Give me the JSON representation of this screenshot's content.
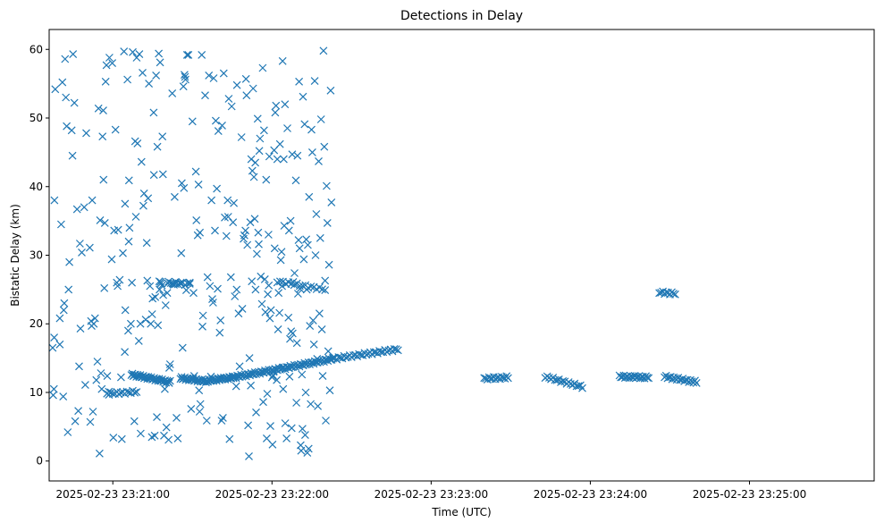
{
  "chart_data": {
    "type": "scatter",
    "title": "Detections in Delay",
    "xlabel": "Time (UTC)",
    "ylabel": "Bistatic Delay (km)",
    "marker": "x",
    "color": "#1f77b4",
    "grid": false,
    "legend": "none",
    "xlim": [
      "2025-02-23 23:20:36",
      "2025-02-23 23:25:47"
    ],
    "ylim": [
      -2.9,
      62.9
    ],
    "xticks": [
      "2025-02-23 23:21:00",
      "2025-02-23 23:22:00",
      "2025-02-23 23:23:00",
      "2025-02-23 23:24:00",
      "2025-02-23 23:25:00"
    ],
    "yticks": [
      "0",
      "10",
      "20",
      "30",
      "40",
      "50",
      "60"
    ],
    "points_x_t0": "2025-02-23 23:20:36",
    "points_x_units": "seconds after points_x_t0",
    "points": [
      [
        1.3,
        16.5
      ],
      [
        1.5,
        9.6
      ],
      [
        1.8,
        10.5
      ],
      [
        1.9,
        18.0
      ],
      [
        2.0,
        38.0
      ],
      [
        2.3,
        54.2
      ],
      [
        4.0,
        17.0
      ],
      [
        4.0,
        20.8
      ],
      [
        4.5,
        34.5
      ],
      [
        5.0,
        55.2
      ],
      [
        5.3,
        9.4
      ],
      [
        5.5,
        22.0
      ],
      [
        5.7,
        23.0
      ],
      [
        6.0,
        58.6
      ],
      [
        6.3,
        53.0
      ],
      [
        6.6,
        48.8
      ],
      [
        7.0,
        4.2
      ],
      [
        7.3,
        25.0
      ],
      [
        7.6,
        29.0
      ],
      [
        8.5,
        48.2
      ],
      [
        8.8,
        44.5
      ],
      [
        9.0,
        59.3
      ],
      [
        9.5,
        52.2
      ],
      [
        9.8,
        5.8
      ],
      [
        10.5,
        36.7
      ],
      [
        11.0,
        7.3
      ],
      [
        11.3,
        13.8
      ],
      [
        11.6,
        31.7
      ],
      [
        11.8,
        19.3
      ],
      [
        12.3,
        30.4
      ],
      [
        13.2,
        37.0
      ],
      [
        13.6,
        11.1
      ],
      [
        14.0,
        47.8
      ],
      [
        15.3,
        31.1
      ],
      [
        15.5,
        5.7
      ],
      [
        15.8,
        20.4
      ],
      [
        16.0,
        19.7
      ],
      [
        16.2,
        38.0
      ],
      [
        16.5,
        7.2
      ],
      [
        16.8,
        20.0
      ],
      [
        17.3,
        20.8
      ],
      [
        17.8,
        11.8
      ],
      [
        18.2,
        14.5
      ],
      [
        18.6,
        51.4
      ],
      [
        19.0,
        1.1
      ],
      [
        19.2,
        35.1
      ],
      [
        19.5,
        12.8
      ],
      [
        19.8,
        10.5
      ],
      [
        20.1,
        47.3
      ],
      [
        20.4,
        51.1
      ],
      [
        20.5,
        41.0
      ],
      [
        20.8,
        25.2
      ],
      [
        21.0,
        34.7
      ],
      [
        21.3,
        55.3
      ],
      [
        21.6,
        57.7
      ],
      [
        21.9,
        12.4
      ],
      [
        22.5,
        10.1
      ],
      [
        22.7,
        58.8
      ],
      [
        23.6,
        29.4
      ],
      [
        23.8,
        58.0
      ],
      [
        24.2,
        3.4
      ],
      [
        24.5,
        33.6
      ],
      [
        25.0,
        48.3
      ],
      [
        25.5,
        26.0
      ],
      [
        25.8,
        25.5
      ],
      [
        26.0,
        33.7
      ],
      [
        26.6,
        26.4
      ],
      [
        27.1,
        12.2
      ],
      [
        27.4,
        3.2
      ],
      [
        27.8,
        30.3
      ],
      [
        28.2,
        59.7
      ],
      [
        28.5,
        15.9
      ],
      [
        28.6,
        37.5
      ],
      [
        28.7,
        22.0
      ],
      [
        29.5,
        55.6
      ],
      [
        29.8,
        19.0
      ],
      [
        30.0,
        32.0
      ],
      [
        30.1,
        40.9
      ],
      [
        30.3,
        34.0
      ],
      [
        30.8,
        20.0
      ],
      [
        31.2,
        26.0
      ],
      [
        31.5,
        59.6
      ],
      [
        32.0,
        12.5
      ],
      [
        32.1,
        5.8
      ],
      [
        32.4,
        46.6
      ],
      [
        32.7,
        35.6
      ],
      [
        33.0,
        58.8
      ],
      [
        33.3,
        46.3
      ],
      [
        33.8,
        17.5
      ],
      [
        34.0,
        59.3
      ],
      [
        34.4,
        20.0
      ],
      [
        34.5,
        4.0
      ],
      [
        34.8,
        43.6
      ],
      [
        35.2,
        56.6
      ],
      [
        35.5,
        37.2
      ],
      [
        35.8,
        39.0
      ],
      [
        36.4,
        20.6
      ],
      [
        36.8,
        31.8
      ],
      [
        37.0,
        26.3
      ],
      [
        37.3,
        38.3
      ],
      [
        37.6,
        55.0
      ],
      [
        38.0,
        25.5
      ],
      [
        38.3,
        20.0
      ],
      [
        38.7,
        3.5
      ],
      [
        38.8,
        21.4
      ],
      [
        39.0,
        23.7
      ],
      [
        39.4,
        50.8
      ],
      [
        39.5,
        41.7
      ],
      [
        39.8,
        3.7
      ],
      [
        40.0,
        23.9
      ],
      [
        40.3,
        56.2
      ],
      [
        40.6,
        6.4
      ],
      [
        40.8,
        45.8
      ],
      [
        41.0,
        19.8
      ],
      [
        41.3,
        59.4
      ],
      [
        41.5,
        26.2
      ],
      [
        41.6,
        25.0
      ],
      [
        41.8,
        58.1
      ],
      [
        42.0,
        26.1
      ],
      [
        42.2,
        25.9
      ],
      [
        42.5,
        25.6
      ],
      [
        42.7,
        47.3
      ],
      [
        42.9,
        41.8
      ],
      [
        43.0,
        24.2
      ],
      [
        43.3,
        3.7
      ],
      [
        43.6,
        10.5
      ],
      [
        43.9,
        22.7
      ],
      [
        44.2,
        4.9
      ],
      [
        44.5,
        24.5
      ],
      [
        44.8,
        25.9
      ],
      [
        45.0,
        3.1
      ],
      [
        45.3,
        13.6
      ],
      [
        45.6,
        14.1
      ],
      [
        46.4,
        53.6
      ],
      [
        46.5,
        25.9
      ],
      [
        47.0,
        25.7
      ],
      [
        47.3,
        38.5
      ],
      [
        47.7,
        25.8
      ],
      [
        48.0,
        6.3
      ],
      [
        48.5,
        3.3
      ],
      [
        49.6,
        26.0
      ],
      [
        49.8,
        30.3
      ],
      [
        50.0,
        40.5
      ],
      [
        50.3,
        16.5
      ],
      [
        50.6,
        54.6
      ],
      [
        50.8,
        39.8
      ],
      [
        51.0,
        56.3
      ],
      [
        51.2,
        56.0
      ],
      [
        51.4,
        55.6
      ],
      [
        51.7,
        24.9
      ],
      [
        52.0,
        59.2
      ],
      [
        52.5,
        59.2
      ],
      [
        53.0,
        26.0
      ],
      [
        53.5,
        7.6
      ],
      [
        54.0,
        49.5
      ],
      [
        54.4,
        24.5
      ],
      [
        54.7,
        12.4
      ],
      [
        55.3,
        42.2
      ],
      [
        55.5,
        35.1
      ],
      [
        56.0,
        32.9
      ],
      [
        56.3,
        40.3
      ],
      [
        56.5,
        10.3
      ],
      [
        56.7,
        7.2
      ],
      [
        56.8,
        33.3
      ],
      [
        57.0,
        8.3
      ],
      [
        57.5,
        59.2
      ],
      [
        57.8,
        19.6
      ],
      [
        58.0,
        21.2
      ],
      [
        58.8,
        53.3
      ],
      [
        59.4,
        5.9
      ],
      [
        59.7,
        26.8
      ],
      [
        60.2,
        56.2
      ],
      [
        60.6,
        25.5
      ],
      [
        61.0,
        12.3
      ],
      [
        61.2,
        38.0
      ],
      [
        61.5,
        23.6
      ],
      [
        61.8,
        23.1
      ],
      [
        62.0,
        55.8
      ],
      [
        62.5,
        33.6
      ],
      [
        62.8,
        49.6
      ],
      [
        63.2,
        39.7
      ],
      [
        63.5,
        25.1
      ],
      [
        63.8,
        48.1
      ],
      [
        64.0,
        12.0
      ],
      [
        64.3,
        18.7
      ],
      [
        64.6,
        20.5
      ],
      [
        65.0,
        5.9
      ],
      [
        65.2,
        48.9
      ],
      [
        65.5,
        6.3
      ],
      [
        65.8,
        56.5
      ],
      [
        66.2,
        35.5
      ],
      [
        66.8,
        32.8
      ],
      [
        67.3,
        38.0
      ],
      [
        67.5,
        35.6
      ],
      [
        67.7,
        52.8
      ],
      [
        68.0,
        3.2
      ],
      [
        68.5,
        26.8
      ],
      [
        68.8,
        51.7
      ],
      [
        69.3,
        34.8
      ],
      [
        69.6,
        37.6
      ],
      [
        70.0,
        24.0
      ],
      [
        70.5,
        10.9
      ],
      [
        70.7,
        25.0
      ],
      [
        70.8,
        54.8
      ],
      [
        71.4,
        21.5
      ],
      [
        71.8,
        13.8
      ],
      [
        72.5,
        47.2
      ],
      [
        72.8,
        22.2
      ],
      [
        73.3,
        32.4
      ],
      [
        73.6,
        32.9
      ],
      [
        74.0,
        33.6
      ],
      [
        74.2,
        55.7
      ],
      [
        74.4,
        53.3
      ],
      [
        74.7,
        31.5
      ],
      [
        75.0,
        5.2
      ],
      [
        75.3,
        0.7
      ],
      [
        75.5,
        15.0
      ],
      [
        75.8,
        34.8
      ],
      [
        76.0,
        11.0
      ],
      [
        76.2,
        44.0
      ],
      [
        76.4,
        26.2
      ],
      [
        76.6,
        42.3
      ],
      [
        76.9,
        54.3
      ],
      [
        77.2,
        41.4
      ],
      [
        77.5,
        35.3
      ],
      [
        77.7,
        43.5
      ],
      [
        77.8,
        25.0
      ],
      [
        78.0,
        7.1
      ],
      [
        78.3,
        30.2
      ],
      [
        78.6,
        49.9
      ],
      [
        78.8,
        33.3
      ],
      [
        79.0,
        31.6
      ],
      [
        79.2,
        45.2
      ],
      [
        79.5,
        47.0
      ],
      [
        79.8,
        26.9
      ],
      [
        80.2,
        22.9
      ],
      [
        80.5,
        57.3
      ],
      [
        80.7,
        8.6
      ],
      [
        81.0,
        48.2
      ],
      [
        81.3,
        26.5
      ],
      [
        81.5,
        21.7
      ],
      [
        81.8,
        41.0
      ],
      [
        82.0,
        3.3
      ],
      [
        82.2,
        9.8
      ],
      [
        82.4,
        24.3
      ],
      [
        82.7,
        33.0
      ],
      [
        82.8,
        25.6
      ],
      [
        83.0,
        44.4
      ],
      [
        83.2,
        20.8
      ],
      [
        83.4,
        5.1
      ],
      [
        83.6,
        22.0
      ],
      [
        84.0,
        12.2
      ],
      [
        84.2,
        2.4
      ],
      [
        84.4,
        12.5
      ],
      [
        84.6,
        13.0
      ],
      [
        84.8,
        45.3
      ],
      [
        85.0,
        31.0
      ],
      [
        85.2,
        50.8
      ],
      [
        85.5,
        51.8
      ],
      [
        85.8,
        11.8
      ],
      [
        86.0,
        44.0
      ],
      [
        86.3,
        19.2
      ],
      [
        86.5,
        24.5
      ],
      [
        86.8,
        21.6
      ],
      [
        87.0,
        46.2
      ],
      [
        87.3,
        29.3
      ],
      [
        87.6,
        30.5
      ],
      [
        87.8,
        25.5
      ],
      [
        88.0,
        58.3
      ],
      [
        88.2,
        10.5
      ],
      [
        88.4,
        44.0
      ],
      [
        88.6,
        34.3
      ],
      [
        88.9,
        52.0
      ],
      [
        89.0,
        5.5
      ],
      [
        89.3,
        25.8
      ],
      [
        89.5,
        3.3
      ],
      [
        89.8,
        48.5
      ],
      [
        90.2,
        20.9
      ],
      [
        90.4,
        33.6
      ],
      [
        90.6,
        12.3
      ],
      [
        90.8,
        17.8
      ],
      [
        91.0,
        35.0
      ],
      [
        91.2,
        18.9
      ],
      [
        91.4,
        4.8
      ],
      [
        91.6,
        44.7
      ],
      [
        91.8,
        18.6
      ],
      [
        92.0,
        26.1
      ],
      [
        92.5,
        27.4
      ],
      [
        93.0,
        40.9
      ],
      [
        93.2,
        8.5
      ],
      [
        93.4,
        17.2
      ],
      [
        93.6,
        44.5
      ],
      [
        93.8,
        24.4
      ],
      [
        94.0,
        32.2
      ],
      [
        94.2,
        55.3
      ],
      [
        94.4,
        31.0
      ],
      [
        94.6,
        25.1
      ],
      [
        94.8,
        2.3
      ],
      [
        95.0,
        1.5
      ],
      [
        95.3,
        12.6
      ],
      [
        95.5,
        4.7
      ],
      [
        95.7,
        53.1
      ],
      [
        96.0,
        29.4
      ],
      [
        96.3,
        49.1
      ],
      [
        96.5,
        3.8
      ],
      [
        96.7,
        10.0
      ],
      [
        96.9,
        32.3
      ],
      [
        97.1,
        25.0
      ],
      [
        97.3,
        1.2
      ],
      [
        97.5,
        31.5
      ],
      [
        97.8,
        1.8
      ],
      [
        98.0,
        38.5
      ],
      [
        98.3,
        19.7
      ],
      [
        98.6,
        8.3
      ],
      [
        98.9,
        48.3
      ],
      [
        99.2,
        45.0
      ],
      [
        99.5,
        20.5
      ],
      [
        99.8,
        17.0
      ],
      [
        100.1,
        55.4
      ],
      [
        100.4,
        30.0
      ],
      [
        100.7,
        36.0
      ],
      [
        101.0,
        14.9
      ],
      [
        101.3,
        8.0
      ],
      [
        101.6,
        43.7
      ],
      [
        101.9,
        21.5
      ],
      [
        102.2,
        32.5
      ],
      [
        102.5,
        49.8
      ],
      [
        102.8,
        19.2
      ],
      [
        103.1,
        12.4
      ],
      [
        103.4,
        59.8
      ],
      [
        103.7,
        45.8
      ],
      [
        104.0,
        26.3
      ],
      [
        104.3,
        5.9
      ],
      [
        104.6,
        40.1
      ],
      [
        104.9,
        34.7
      ],
      [
        105.2,
        16.0
      ],
      [
        105.5,
        28.6
      ],
      [
        105.8,
        10.3
      ],
      [
        106.1,
        54.0
      ],
      [
        106.4,
        37.7
      ]
    ],
    "tracks": [
      {
        "x_start": 21.8,
        "x_end": 33.0,
        "y_start": 9.8,
        "y_end": 10.1,
        "count": 16
      },
      {
        "x_start": 31.0,
        "x_end": 45.6,
        "y_start": 12.6,
        "y_end": 11.5,
        "count": 40
      },
      {
        "x_start": 49.5,
        "x_end": 59.5,
        "y_start": 12.1,
        "y_end": 11.6,
        "count": 26
      },
      {
        "x_start": 59.5,
        "x_end": 69.5,
        "y_start": 11.7,
        "y_end": 12.2,
        "count": 26
      },
      {
        "x_start": 69.5,
        "x_end": 88.0,
        "y_start": 12.2,
        "y_end": 13.5,
        "count": 40
      },
      {
        "x_start": 88.0,
        "x_end": 107.0,
        "y_start": 13.5,
        "y_end": 14.9,
        "count": 40
      },
      {
        "x_start": 107.0,
        "x_end": 131.5,
        "y_start": 14.9,
        "y_end": 16.3,
        "count": 36
      },
      {
        "x_start": 164.0,
        "x_end": 173.0,
        "y_start": 12.0,
        "y_end": 12.2,
        "count": 16
      },
      {
        "x_start": 187.0,
        "x_end": 201.0,
        "y_start": 12.3,
        "y_end": 10.8,
        "count": 20
      },
      {
        "x_start": 215.0,
        "x_end": 226.0,
        "y_start": 12.3,
        "y_end": 12.2,
        "count": 22
      },
      {
        "x_start": 232.0,
        "x_end": 244.0,
        "y_start": 12.3,
        "y_end": 11.5,
        "count": 22
      },
      {
        "x_start": 45.0,
        "x_end": 53.0,
        "y_start": 26.0,
        "y_end": 25.8,
        "count": 10
      },
      {
        "x_start": 86.0,
        "x_end": 104.0,
        "y_start": 26.2,
        "y_end": 25.0,
        "count": 18
      },
      {
        "x_start": 230.0,
        "x_end": 236.0,
        "y_start": 24.6,
        "y_end": 24.4,
        "count": 10
      }
    ]
  }
}
